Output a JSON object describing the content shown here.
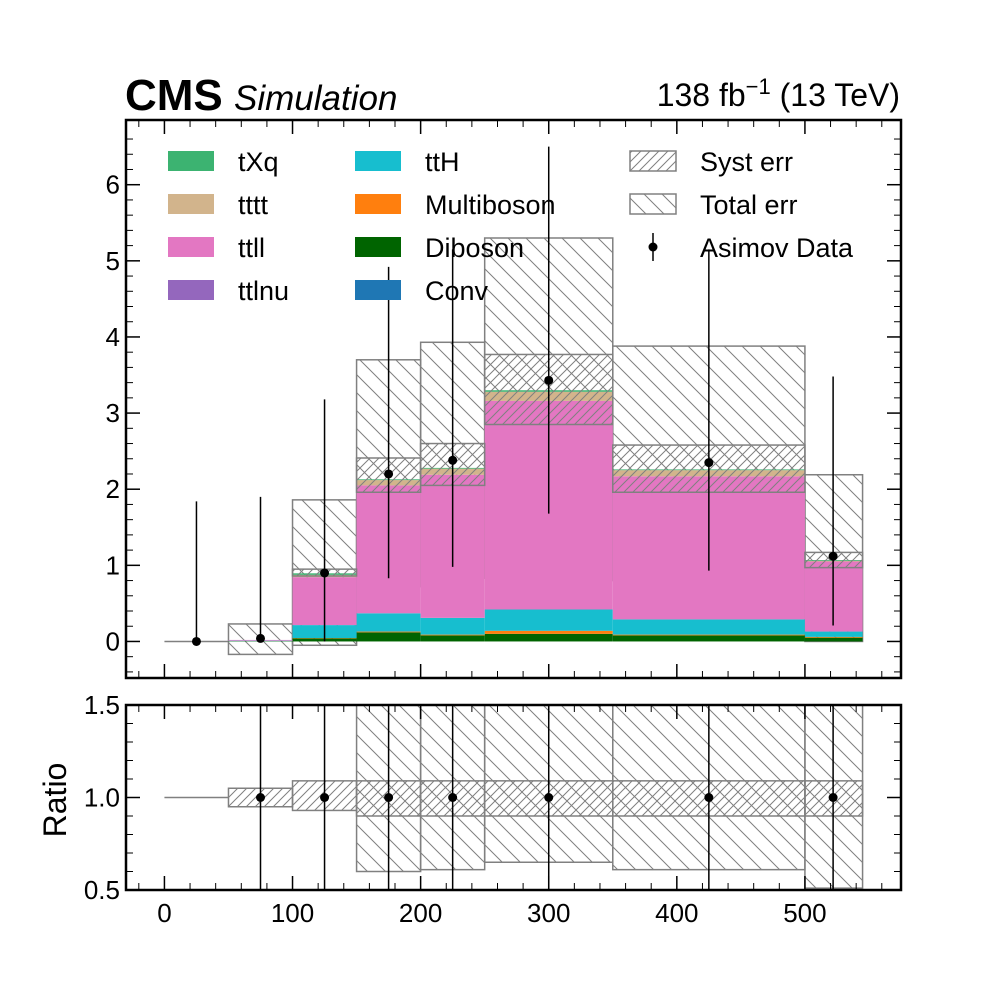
{
  "header": {
    "experiment": "CMS",
    "status": "Simulation",
    "lumi_prefix": "138 fb",
    "lumi_exp": "−1",
    "lumi_suffix": " (13 TeV)"
  },
  "chart_data": [
    {
      "type": "bar",
      "stacked": true,
      "bin_edges": [
        0,
        50,
        100,
        150,
        200,
        250,
        350,
        500,
        545
      ],
      "xlim": [
        -30,
        575
      ],
      "ylim": [
        -0.48,
        6.85
      ],
      "yticks": [
        0,
        1,
        2,
        3,
        4,
        5,
        6
      ],
      "xticks": [
        0,
        100,
        200,
        300,
        400,
        500
      ],
      "ylabel": "",
      "xlabel": "",
      "grid": false,
      "legend_position": "top, three columns",
      "series": [
        {
          "name": "Conv",
          "color": "#1f77b4",
          "values": [
            0,
            0,
            0,
            0,
            0,
            0,
            0,
            0
          ]
        },
        {
          "name": "Diboson",
          "color": "#006400",
          "values": [
            0,
            0.005,
            0.04,
            0.12,
            0.08,
            0.1,
            0.08,
            0.05
          ]
        },
        {
          "name": "Multiboson",
          "color": "#ff7f0e",
          "values": [
            0,
            0,
            0.005,
            0.01,
            0.01,
            0.04,
            0.01,
            0.01
          ]
        },
        {
          "name": "ttH",
          "color": "#17becf",
          "values": [
            0,
            0.005,
            0.17,
            0.24,
            0.22,
            0.28,
            0.2,
            0.07
          ]
        },
        {
          "name": "ttlnu",
          "color": "#9467bd",
          "values": [
            0,
            0,
            0,
            0,
            0,
            0,
            0,
            0
          ]
        },
        {
          "name": "ttll",
          "color": "#e377c2",
          "values": [
            0,
            0.01,
            0.63,
            1.68,
            1.88,
            2.74,
            1.88,
            0.92
          ]
        },
        {
          "name": "tttt",
          "color": "#d2b48c",
          "values": [
            0,
            0,
            0.03,
            0.07,
            0.08,
            0.12,
            0.08,
            0.01
          ]
        },
        {
          "name": "tXq",
          "color": "#3cb371",
          "values": [
            0,
            0,
            0.02,
            0.01,
            0.01,
            0.02,
            0.01,
            0.01
          ]
        }
      ],
      "syst_err": {
        "name": "Syst err",
        "down": [
          0,
          0.02,
          0.86,
          1.96,
          2.05,
          2.85,
          1.96,
          0.97
        ],
        "up": [
          0,
          0.02,
          0.95,
          2.41,
          2.6,
          3.77,
          2.58,
          1.17
        ]
      },
      "total_err": {
        "name": "Total err",
        "down": [
          0,
          -0.17,
          -0.05,
          0.72,
          0.83,
          1.58,
          0.8,
          0.0
        ],
        "up": [
          0,
          0.23,
          1.86,
          3.7,
          3.93,
          5.3,
          3.88,
          2.19
        ]
      },
      "asimov_data": {
        "name": "Asimov Data",
        "x": [
          25,
          75,
          125,
          175,
          225,
          300,
          425,
          522
        ],
        "y": [
          0,
          0.04,
          0.9,
          2.2,
          2.38,
          3.43,
          2.35,
          1.12
        ],
        "err_low": [
          0,
          0,
          0,
          0.83,
          0.98,
          1.68,
          0.93,
          0.21
        ],
        "err_high": [
          1.84,
          1.9,
          3.18,
          4.92,
          5.15,
          6.5,
          5.15,
          3.48
        ]
      }
    },
    {
      "type": "bar",
      "ylabel": "Ratio",
      "xlabel": "",
      "ylim": [
        0.5,
        1.5
      ],
      "yticks": [
        "0.5",
        "1.0",
        "1.5"
      ],
      "xticks": [
        "0",
        "100",
        "200",
        "300",
        "400",
        "500"
      ],
      "bin_edges": [
        0,
        50,
        100,
        150,
        200,
        250,
        350,
        500,
        545
      ],
      "syst_band": {
        "down": [
          1.0,
          0.95,
          0.93,
          0.9,
          0.9,
          0.9,
          0.9,
          0.9
        ],
        "up": [
          1.0,
          1.05,
          1.09,
          1.09,
          1.09,
          1.09,
          1.09,
          1.09
        ]
      },
      "total_band": {
        "down": [
          1.0,
          1.0,
          1.0,
          0.6,
          0.61,
          0.65,
          0.61,
          0.51
        ],
        "up": [
          1.0,
          1.0,
          1.0,
          1.5,
          1.5,
          1.5,
          1.5,
          1.5
        ]
      },
      "ratio_points": {
        "x": [
          75,
          125,
          175,
          225,
          300,
          425,
          522
        ],
        "y": [
          1,
          1,
          1,
          1,
          1,
          1,
          1
        ]
      }
    }
  ]
}
